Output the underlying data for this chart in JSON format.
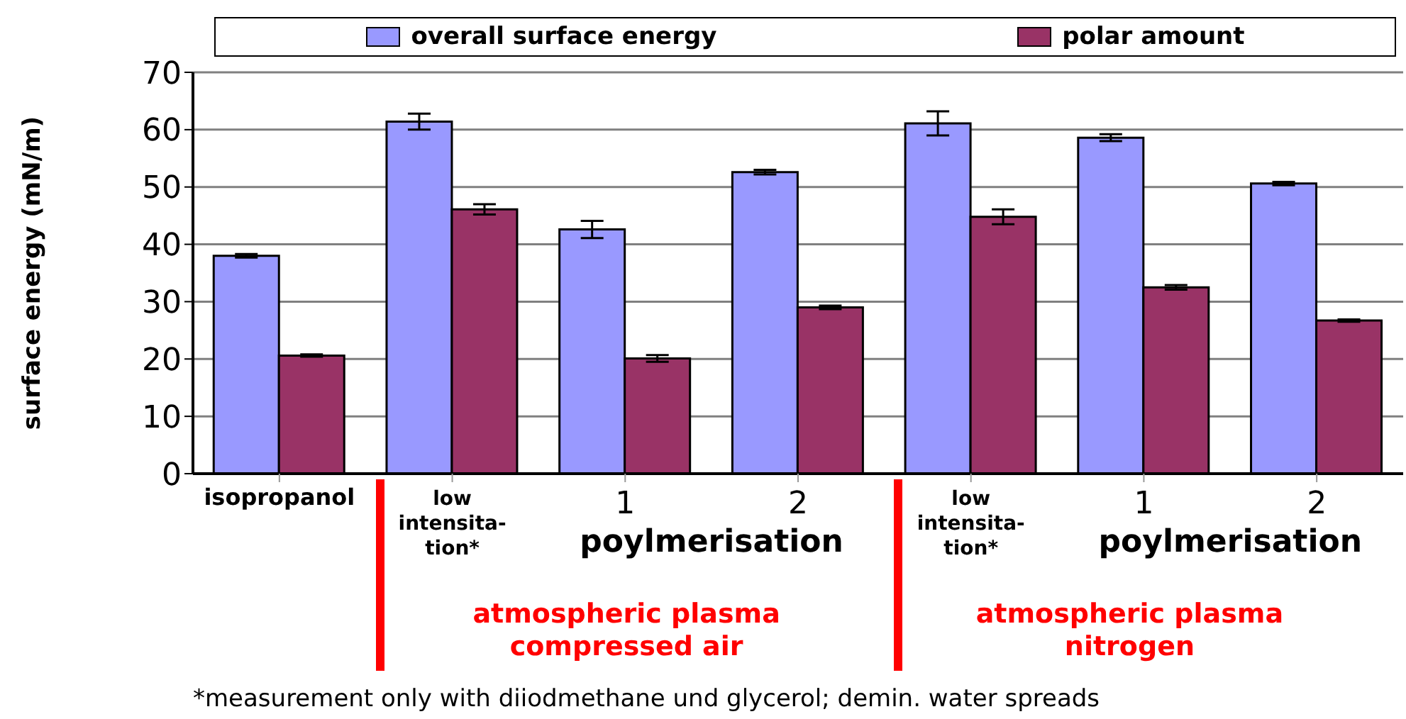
{
  "chart_data": {
    "type": "bar",
    "ylabel": "surface energy (mN/m)",
    "categories": [
      "isopropanol",
      "low intensita-tion*",
      "1",
      "2",
      "low intensita-tion*",
      "1",
      "2"
    ],
    "series": [
      {
        "name": "overall surface energy",
        "color": "#9999ff",
        "values": [
          38,
          61.4,
          42.6,
          52.6,
          61.1,
          58.6,
          50.6
        ],
        "errors": [
          0.3,
          1.4,
          1.5,
          0.4,
          2.1,
          0.6,
          0.3
        ]
      },
      {
        "name": "polar amount",
        "color": "#993366",
        "values": [
          20.6,
          46.1,
          20.1,
          29,
          44.8,
          32.5,
          26.7
        ],
        "errors": [
          0.2,
          0.9,
          0.6,
          0.3,
          1.3,
          0.4,
          0.2
        ]
      }
    ],
    "ylim": [
      0,
      70
    ],
    "yticks": [
      0,
      10,
      20,
      30,
      40,
      50,
      60,
      70
    ],
    "grid": "y",
    "legend": "top",
    "annotations": [
      "poylmerisation",
      "poylmerisation",
      "atmospheric plasma compressed air",
      "atmospheric plasma nitrogen",
      "*measurement only with diiodmethane und glycerol; demin. water spreads"
    ]
  }
}
